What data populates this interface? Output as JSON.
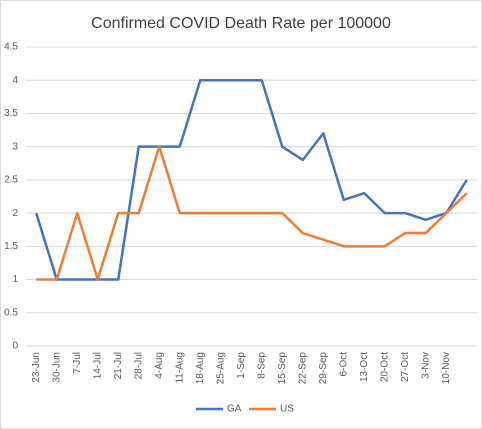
{
  "chart_data": {
    "type": "line",
    "title": "Confirmed COVID Death Rate per 100000",
    "categories": [
      "23-Jun",
      "30-Jun",
      "7-Jul",
      "14-Jul",
      "21-Jul",
      "28-Jul",
      "4-Aug",
      "11-Aug",
      "18-Aug",
      "25-Aug",
      "1-Sep",
      "8-Sep",
      "15-Sep",
      "22-Sep",
      "29-Sep",
      "6-Oct",
      "13-Oct",
      "20-Oct",
      "27-Oct",
      "3-Nov",
      "10-Nov",
      null
    ],
    "series": [
      {
        "name": "GA",
        "color": "#4472c4",
        "values": [
          2,
          1,
          1,
          1,
          1,
          3,
          3,
          3,
          4,
          4,
          4,
          4,
          3,
          2.8,
          3.2,
          2.2,
          2.3,
          2,
          2,
          1.9,
          2,
          2.5
        ]
      },
      {
        "name": "US",
        "color": "#ed7d31",
        "values": [
          1,
          1,
          2,
          1,
          2,
          2,
          3,
          2,
          2,
          2,
          2,
          2,
          2,
          1.7,
          1.6,
          1.5,
          1.5,
          1.5,
          1.7,
          1.7,
          2,
          2.3
        ]
      }
    ],
    "ylim": [
      0,
      4.5
    ],
    "yticks": [
      0,
      0.5,
      1,
      1.5,
      2,
      2.5,
      3,
      3.5,
      4,
      4.5
    ],
    "grid": true,
    "legend": "bottom"
  }
}
